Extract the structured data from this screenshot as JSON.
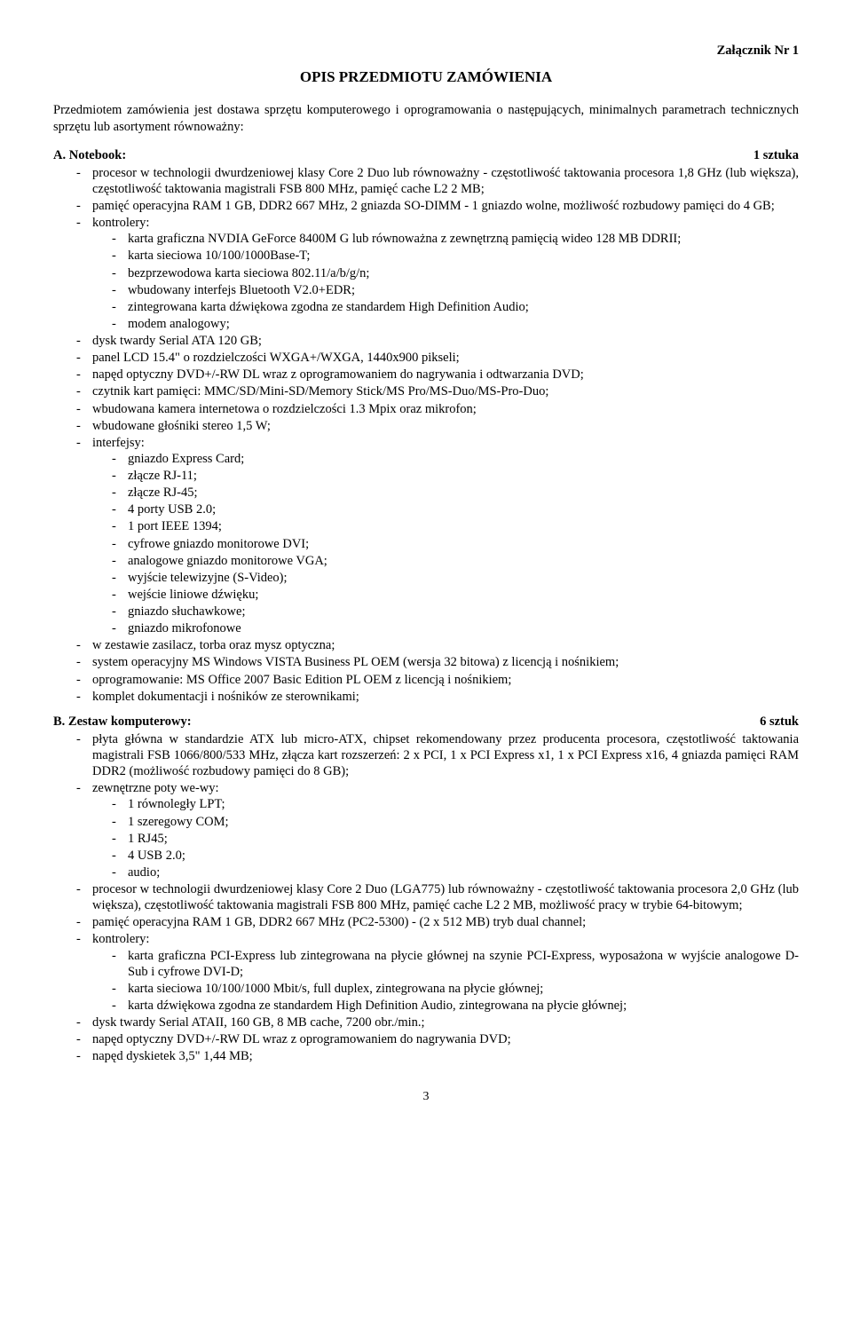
{
  "header_right": "Załącznik Nr 1",
  "title": "OPIS PRZEDMIOTU ZAMÓWIENIA",
  "intro": "Przedmiotem zamówienia jest dostawa sprzętu komputerowego i oprogramowania o następujących, minimalnych parametrach technicznych sprzętu lub asortyment równoważny:",
  "sectionA": {
    "head": "A. Notebook:",
    "qty": "1 sztuka",
    "items": [
      "procesor w technologii dwurdzeniowej klasy Core 2 Duo lub równoważny - częstotliwość taktowania procesora 1,8 GHz (lub większa), częstotliwość taktowania magistrali FSB 800 MHz, pamięć cache L2 2 MB;",
      "pamięć operacyjna RAM 1 GB, DDR2 667 MHz, 2 gniazda SO-DIMM - 1 gniazdo wolne, możliwość rozbudowy pamięci do 4 GB;",
      "kontrolery:",
      "dysk twardy Serial ATA 120 GB;",
      "panel LCD 15.4\" o rozdzielczości WXGA+/WXGA, 1440x900 pikseli;",
      "napęd optyczny DVD+/-RW DL wraz z oprogramowaniem do nagrywania i odtwarzania DVD;",
      "czytnik kart pamięci: MMC/SD/Mini-SD/Memory Stick/MS Pro/MS-Duo/MS-Pro-Duo;",
      "wbudowana kamera internetowa o rozdzielczości 1.3 Mpix oraz mikrofon;",
      "wbudowane głośniki stereo 1,5 W;",
      "interfejsy:",
      "w zestawie zasilacz, torba oraz mysz optyczna;",
      "system operacyjny MS Windows VISTA Business PL OEM (wersja 32 bitowa) z licencją i nośnikiem;",
      "oprogramowanie: MS Office 2007 Basic Edition PL OEM z licencją i nośnikiem;",
      "komplet dokumentacji i nośników ze sterownikami;"
    ],
    "kontrolery_sub": [
      "karta graficzna NVDIA GeForce 8400M G lub równoważna z zewnętrzną pamięcią wideo 128 MB DDRII;",
      "karta sieciowa 10/100/1000Base-T;",
      "bezprzewodowa karta sieciowa 802.11/a/b/g/n;",
      "wbudowany interfejs Bluetooth V2.0+EDR;",
      "zintegrowana karta dźwiękowa zgodna ze standardem High Definition Audio;",
      "modem analogowy;"
    ],
    "interfejsy_sub": [
      "gniazdo Express Card;",
      "złącze RJ-11;",
      "złącze RJ-45;",
      "4 porty USB 2.0;",
      "1 port IEEE 1394;",
      "cyfrowe gniazdo monitorowe DVI;",
      "analogowe gniazdo monitorowe VGA;",
      "wyjście telewizyjne (S-Video);",
      "wejście liniowe dźwięku;",
      "gniazdo słuchawkowe;",
      "gniazdo mikrofonowe"
    ]
  },
  "sectionB": {
    "head": "B. Zestaw komputerowy:",
    "qty": "6 sztuk",
    "items": [
      "płyta główna w standardzie ATX lub micro-ATX, chipset rekomendowany przez producenta procesora, częstotliwość taktowania magistrali FSB 1066/800/533 MHz, złącza kart rozszerzeń: 2 x PCI, 1 x PCI Express x1, 1 x PCI Express x16, 4 gniazda pamięci RAM DDR2 (możliwość rozbudowy pamięci do 8 GB);",
      "zewnętrzne poty we-wy:",
      "procesor w technologii dwurdzeniowej klasy Core 2 Duo (LGA775) lub równoważny - częstotliwość taktowania procesora 2,0 GHz (lub większa), częstotliwość taktowania magistrali FSB 800 MHz, pamięć cache L2 2 MB, możliwość pracy w trybie 64-bitowym;",
      "pamięć operacyjna RAM 1 GB, DDR2 667 MHz (PC2-5300) - (2 x 512 MB) tryb dual channel;",
      "kontrolery:",
      "dysk twardy Serial ATAII, 160 GB, 8 MB cache, 7200 obr./min.;",
      "napęd optyczny DVD+/-RW DL wraz z oprogramowaniem do nagrywania DVD;",
      "napęd dyskietek 3,5\" 1,44 MB;"
    ],
    "wewy_sub": [
      "1 równoległy LPT;",
      "1 szeregowy COM;",
      "1 RJ45;",
      "4 USB 2.0;",
      "audio;"
    ],
    "kontrolery_sub": [
      "karta graficzna PCI-Express lub zintegrowana na płycie głównej na szynie PCI-Express, wyposażona w wyjście analogowe D-Sub i cyfrowe DVI-D;",
      "karta sieciowa 10/100/1000 Mbit/s, full duplex, zintegrowana na płycie głównej;",
      "karta dźwiękowa zgodna ze standardem High Definition Audio, zintegrowana na płycie głównej;"
    ]
  },
  "page_number": "3"
}
